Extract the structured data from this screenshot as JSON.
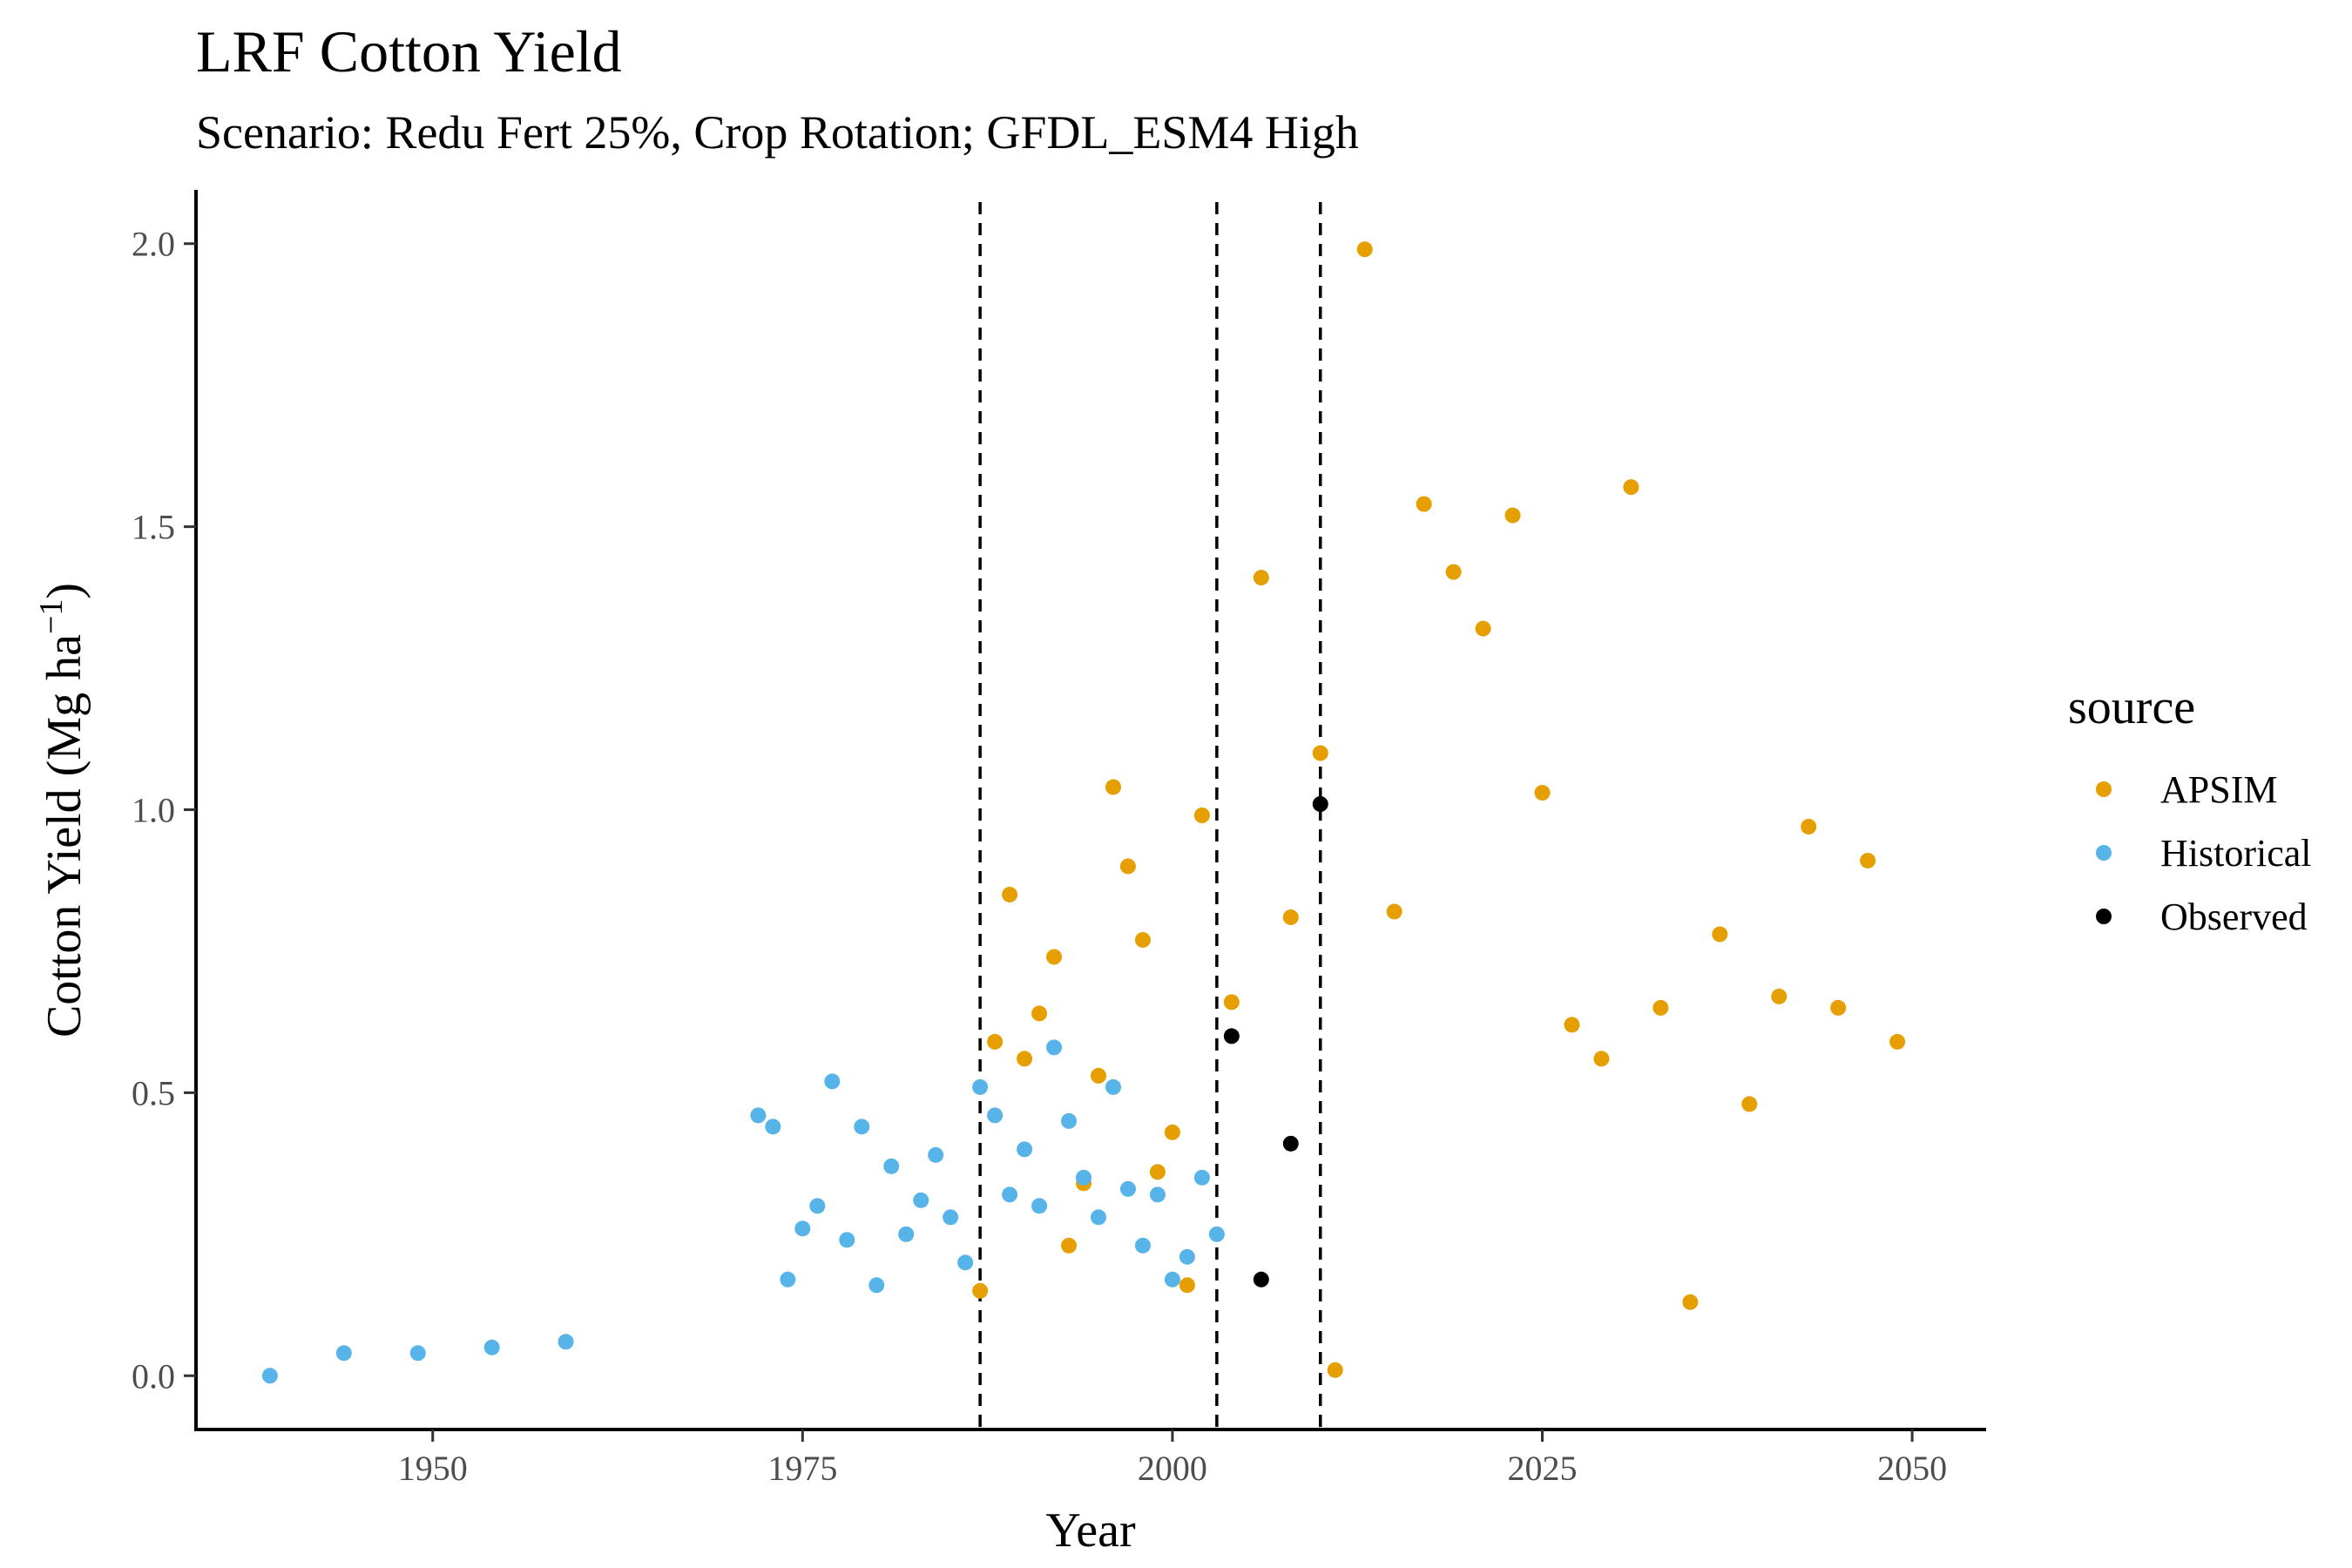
{
  "chart_data": {
    "type": "scatter",
    "title": "LRF Cotton Yield",
    "subtitle": "Scenario: Redu Fert 25%, Crop Rotation; GFDL_ESM4 High",
    "xlabel": "Year",
    "ylabel": "Cotton Yield (Mg ha",
    "ylabel_sup": "−1",
    "ylabel_close": ")",
    "xlim": [
      1934,
      2055
    ],
    "ylim": [
      -0.095,
      2.095
    ],
    "xticks": [
      1950,
      1975,
      2000,
      2025,
      2050
    ],
    "yticks": [
      0.0,
      0.5,
      1.0,
      1.5,
      2.0
    ],
    "ytick_labels": [
      "0.0",
      "0.5",
      "1.0",
      "1.5",
      "2.0"
    ],
    "vlines": [
      1987,
      2003,
      2010
    ],
    "grid": false,
    "legend": {
      "title": "source",
      "position": "right"
    },
    "series": [
      {
        "name": "APSIM",
        "color": "#E69F00",
        "points": [
          [
            1987,
            0.15
          ],
          [
            1988,
            0.59
          ],
          [
            1989,
            0.85
          ],
          [
            1990,
            0.56
          ],
          [
            1991,
            0.64
          ],
          [
            1992,
            0.74
          ],
          [
            1993,
            0.23
          ],
          [
            1994,
            0.34
          ],
          [
            1995,
            0.53
          ],
          [
            1996,
            1.04
          ],
          [
            1997,
            0.9
          ],
          [
            1998,
            0.77
          ],
          [
            1999,
            0.36
          ],
          [
            2000,
            0.43
          ],
          [
            2001,
            0.16
          ],
          [
            2002,
            0.99
          ],
          [
            2004,
            0.66
          ],
          [
            2006,
            1.41
          ],
          [
            2008,
            0.81
          ],
          [
            2010,
            1.1
          ],
          [
            2011,
            0.01
          ],
          [
            2013,
            1.99
          ],
          [
            2015,
            0.82
          ],
          [
            2017,
            1.54
          ],
          [
            2019,
            1.42
          ],
          [
            2021,
            1.32
          ],
          [
            2023,
            1.52
          ],
          [
            2025,
            1.03
          ],
          [
            2027,
            0.62
          ],
          [
            2029,
            0.56
          ],
          [
            2031,
            1.57
          ],
          [
            2033,
            0.65
          ],
          [
            2035,
            0.13
          ],
          [
            2037,
            0.78
          ],
          [
            2039,
            0.48
          ],
          [
            2041,
            0.67
          ],
          [
            2043,
            0.97
          ],
          [
            2045,
            0.65
          ],
          [
            2047,
            0.91
          ],
          [
            2049,
            0.59
          ]
        ]
      },
      {
        "name": "Historical",
        "color": "#56B4E9",
        "points": [
          [
            1939,
            0.0
          ],
          [
            1944,
            0.04
          ],
          [
            1949,
            0.04
          ],
          [
            1954,
            0.05
          ],
          [
            1959,
            0.06
          ],
          [
            1972,
            0.46
          ],
          [
            1973,
            0.44
          ],
          [
            1974,
            0.17
          ],
          [
            1975,
            0.26
          ],
          [
            1976,
            0.3
          ],
          [
            1977,
            0.52
          ],
          [
            1978,
            0.24
          ],
          [
            1979,
            0.44
          ],
          [
            1980,
            0.16
          ],
          [
            1981,
            0.37
          ],
          [
            1982,
            0.25
          ],
          [
            1983,
            0.31
          ],
          [
            1984,
            0.39
          ],
          [
            1985,
            0.28
          ],
          [
            1986,
            0.2
          ],
          [
            1987,
            0.51
          ],
          [
            1988,
            0.46
          ],
          [
            1989,
            0.32
          ],
          [
            1990,
            0.4
          ],
          [
            1991,
            0.3
          ],
          [
            1992,
            0.58
          ],
          [
            1993,
            0.45
          ],
          [
            1994,
            0.35
          ],
          [
            1995,
            0.28
          ],
          [
            1996,
            0.51
          ],
          [
            1997,
            0.33
          ],
          [
            1998,
            0.23
          ],
          [
            1999,
            0.32
          ],
          [
            2000,
            0.17
          ],
          [
            2001,
            0.21
          ],
          [
            2002,
            0.35
          ],
          [
            2003,
            0.25
          ]
        ]
      },
      {
        "name": "Observed",
        "color": "#000000",
        "points": [
          [
            2004,
            0.6
          ],
          [
            2006,
            0.17
          ],
          [
            2008,
            0.41
          ],
          [
            2010,
            1.01
          ]
        ]
      }
    ]
  }
}
